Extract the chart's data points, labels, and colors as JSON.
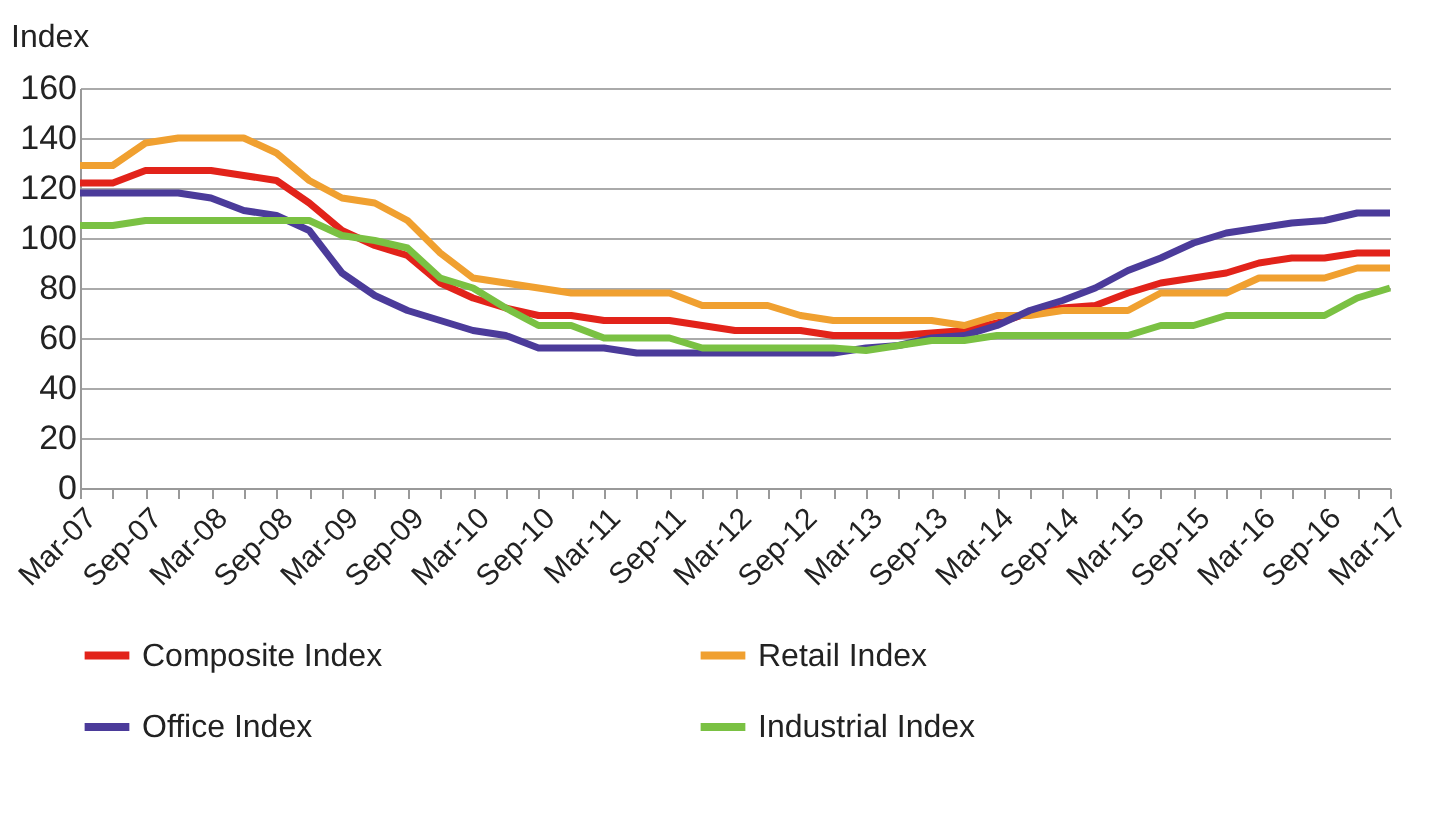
{
  "chart_data": {
    "type": "line",
    "ylabel": "Index",
    "categories": [
      "Mar-07",
      null,
      "Sep-07",
      null,
      "Mar-08",
      null,
      "Sep-08",
      null,
      "Mar-09",
      null,
      "Sep-09",
      null,
      "Mar-10",
      null,
      "Sep-10",
      null,
      "Mar-11",
      null,
      "Sep-11",
      null,
      "Mar-12",
      null,
      "Sep-12",
      null,
      "Mar-13",
      null,
      "Sep-13",
      null,
      "Mar-14",
      null,
      "Sep-14",
      null,
      "Mar-15",
      null,
      "Sep-15",
      null,
      "Mar-16",
      null,
      "Sep-16",
      null,
      "Mar-17"
    ],
    "series": [
      {
        "name": "Composite Index",
        "color": "#e2231a",
        "values": [
          122,
          122,
          127,
          127,
          127,
          125,
          123,
          114,
          103,
          97,
          93,
          82,
          76,
          72,
          69,
          69,
          67,
          67,
          67,
          65,
          63,
          63,
          63,
          61,
          61,
          61,
          62,
          63,
          66,
          70,
          72,
          73,
          78,
          82,
          84,
          86,
          90,
          92,
          92,
          94,
          94
        ]
      },
      {
        "name": "Retail Index",
        "color": "#f0a030",
        "values": [
          129,
          129,
          138,
          140,
          140,
          140,
          134,
          123,
          116,
          114,
          107,
          94,
          84,
          82,
          80,
          78,
          78,
          78,
          78,
          73,
          73,
          73,
          69,
          67,
          67,
          67,
          67,
          65,
          69,
          69,
          71,
          71,
          71,
          78,
          78,
          78,
          84,
          84,
          84,
          88,
          88
        ]
      },
      {
        "name": "Office Index",
        "color": "#4b3b9a",
        "values": [
          118,
          118,
          118,
          118,
          116,
          111,
          109,
          103,
          86,
          77,
          71,
          67,
          63,
          61,
          56,
          56,
          56,
          54,
          54,
          54,
          54,
          54,
          54,
          54,
          56,
          57,
          60,
          61,
          65,
          71,
          75,
          80,
          87,
          92,
          98,
          102,
          104,
          106,
          107,
          110,
          110
        ]
      },
      {
        "name": "Industrial Index",
        "color": "#7ac143",
        "values": [
          105,
          105,
          107,
          107,
          107,
          107,
          107,
          107,
          101,
          99,
          96,
          84,
          80,
          72,
          65,
          65,
          60,
          60,
          60,
          56,
          56,
          56,
          56,
          56,
          55,
          57,
          59,
          59,
          61,
          61,
          61,
          61,
          61,
          65,
          65,
          69,
          69,
          69,
          69,
          76,
          80
        ]
      }
    ],
    "ylim": [
      0,
      160
    ],
    "yticks": [
      0,
      20,
      40,
      60,
      80,
      100,
      120,
      140,
      160
    ],
    "grid": "y",
    "legend": "bottom",
    "line_style": "solid"
  }
}
